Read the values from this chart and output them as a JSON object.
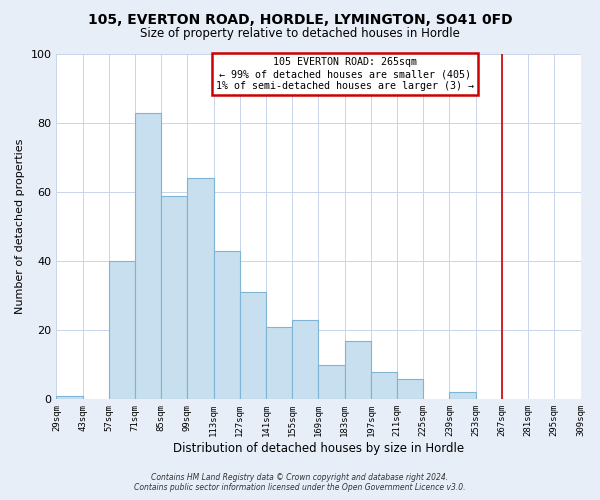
{
  "title": "105, EVERTON ROAD, HORDLE, LYMINGTON, SO41 0FD",
  "subtitle": "Size of property relative to detached houses in Hordle",
  "xlabel": "Distribution of detached houses by size in Hordle",
  "ylabel": "Number of detached properties",
  "bar_left_edges": [
    29,
    43,
    57,
    71,
    85,
    99,
    113,
    127,
    141,
    155,
    169,
    183,
    197,
    211,
    225,
    239,
    253,
    267,
    281,
    295
  ],
  "bar_heights": [
    1,
    0,
    40,
    83,
    59,
    64,
    43,
    31,
    21,
    23,
    10,
    17,
    8,
    6,
    0,
    2,
    0,
    0,
    0,
    0
  ],
  "bin_width": 14,
  "tick_labels": [
    "29sqm",
    "43sqm",
    "57sqm",
    "71sqm",
    "85sqm",
    "99sqm",
    "113sqm",
    "127sqm",
    "141sqm",
    "155sqm",
    "169sqm",
    "183sqm",
    "197sqm",
    "211sqm",
    "225sqm",
    "239sqm",
    "253sqm",
    "267sqm",
    "281sqm",
    "295sqm",
    "309sqm"
  ],
  "tick_positions": [
    29,
    43,
    57,
    71,
    85,
    99,
    113,
    127,
    141,
    155,
    169,
    183,
    197,
    211,
    225,
    239,
    253,
    267,
    281,
    295,
    309
  ],
  "bar_color": "#c8dff0",
  "bar_edge_color": "#7fb4d4",
  "vline_x": 267,
  "vline_color": "#cc0000",
  "ylim": [
    0,
    100
  ],
  "yticks": [
    0,
    20,
    40,
    60,
    80,
    100
  ],
  "legend_title": "105 EVERTON ROAD: 265sqm",
  "legend_line1": "← 99% of detached houses are smaller (405)",
  "legend_line2": "1% of semi-detached houses are larger (3) →",
  "legend_box_color": "#cc0000",
  "footer1": "Contains HM Land Registry data © Crown copyright and database right 2024.",
  "footer2": "Contains public sector information licensed under the Open Government Licence v3.0.",
  "background_color": "#e8eef8",
  "plot_bg_color": "#ffffff",
  "grid_color": "#c8d4e8"
}
